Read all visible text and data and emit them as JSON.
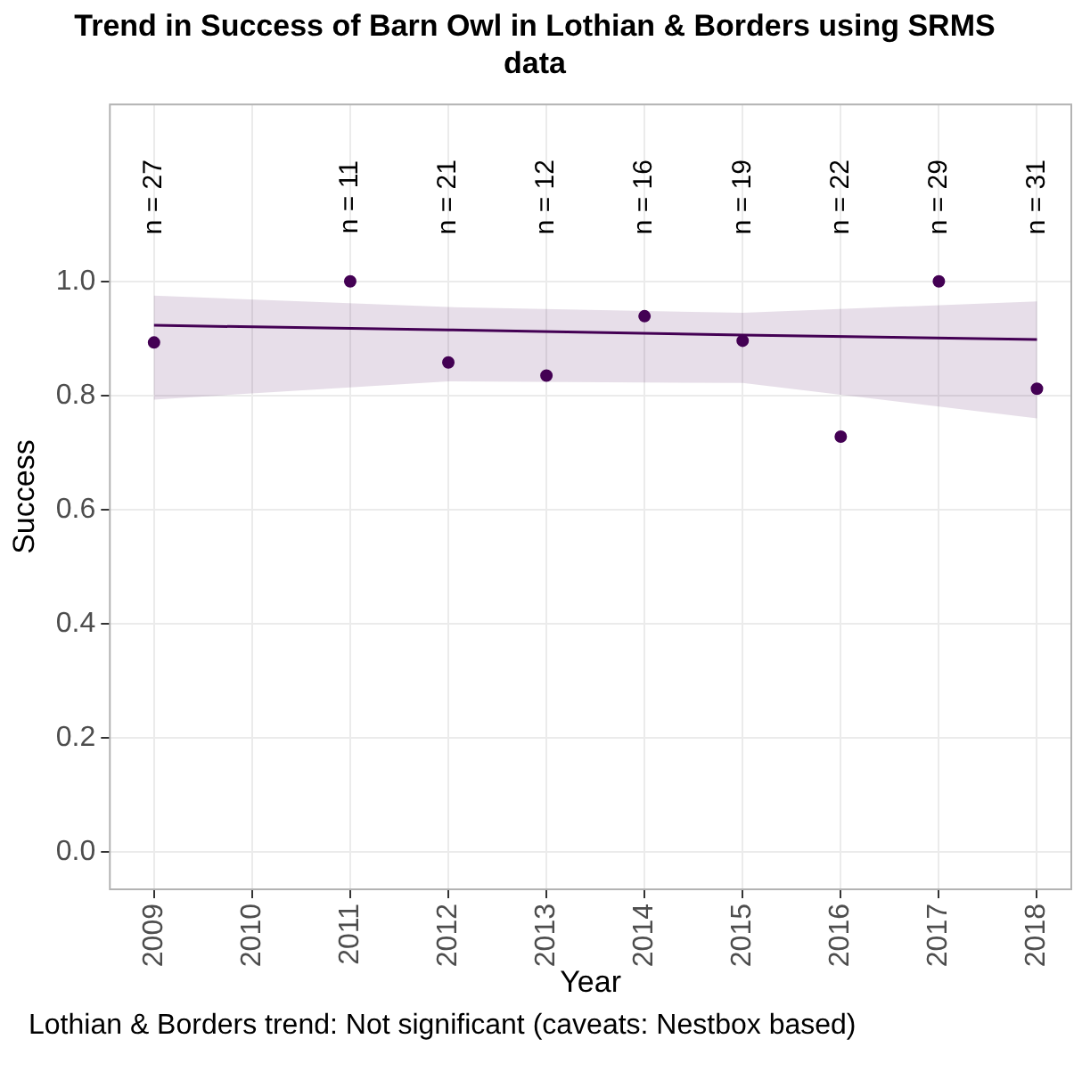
{
  "chart_data": {
    "type": "scatter",
    "title": "Trend in Success of Barn Owl in Lothian & Borders using SRMS data",
    "xlabel": "Year",
    "ylabel": "Success",
    "series": [
      {
        "type": "scatter",
        "marker": "circle",
        "color": "#440154",
        "x": [
          2009,
          2011,
          2012,
          2013,
          2014,
          2015,
          2016,
          2017,
          2018
        ],
        "values": [
          0.893,
          1.0,
          0.858,
          0.835,
          0.939,
          0.896,
          0.728,
          1.0,
          0.812
        ]
      },
      {
        "type": "line",
        "marker": "none",
        "color": "#440154",
        "x": [
          2009,
          2012,
          2015,
          2018
        ],
        "values": [
          0.923,
          0.915,
          0.906,
          0.898
        ],
        "lower": [
          0.793,
          0.825,
          0.822,
          0.76
        ],
        "upper": [
          0.975,
          0.955,
          0.945,
          0.965
        ]
      }
    ],
    "xlim": [
      2008.55,
      2018.35
    ],
    "xticks": [
      2009,
      2010,
      2011,
      2012,
      2013,
      2014,
      2015,
      2016,
      2017,
      2018
    ],
    "ylim": [
      -0.065,
      1.31
    ],
    "yticks": [
      {
        "value": 0,
        "label": "0.0"
      },
      {
        "value": 0.2,
        "label": "0.2"
      },
      {
        "value": 0.4,
        "label": "0.4"
      },
      {
        "value": 0.6,
        "label": "0.6"
      },
      {
        "value": 0.8,
        "label": "0.8"
      },
      {
        "value": 1,
        "label": "1.0"
      }
    ],
    "grid": true,
    "legend": false,
    "annotations": [
      "n = 27",
      "n = 11",
      "n = 21",
      "n = 12",
      "n = 16",
      "n = 19",
      "n = 22",
      "n = 29",
      "n = 31",
      "Lothian & Borders trend: Not significant (caveats: Nestbox based)"
    ]
  }
}
